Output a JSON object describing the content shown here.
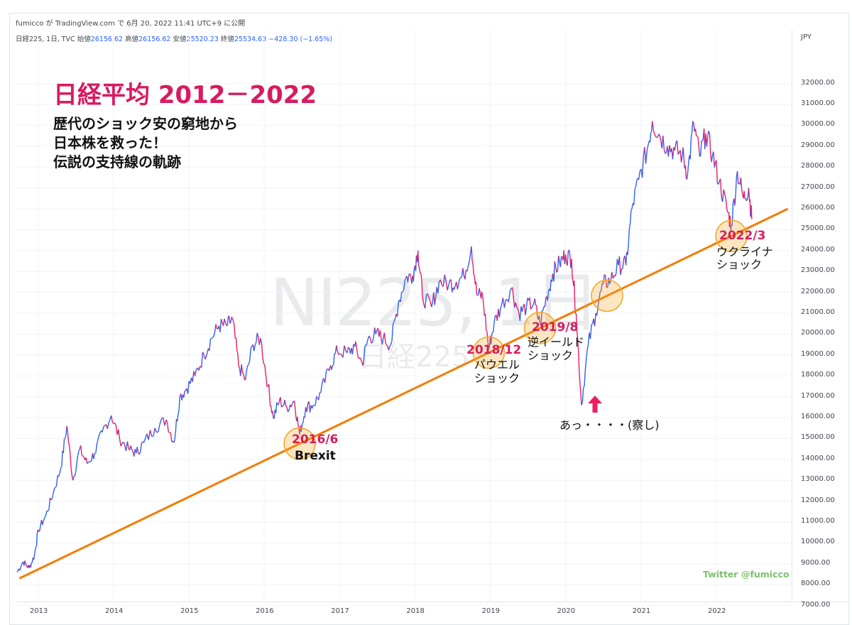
{
  "header": {
    "attribution": "fumicco が TradingView.com で 6月 20, 2022 11:41 UTC+9 に公開",
    "symbol": "日経225, 1日, TVC",
    "open_label": "始値",
    "open": "26156.62",
    "high_label": "高値",
    "high": "26156.62",
    "low_label": "安値",
    "low": "25520.23",
    "close_label": "終値",
    "close": "25534.63",
    "change": "−428.30 (−1.65%)",
    "currency": "JPY"
  },
  "watermark": {
    "main": "NI225, 1日",
    "sub": "日経225"
  },
  "title": "日経平均 2012－2022",
  "subtitle": [
    "歴代のショック安の窮地から",
    "日本株を救った！",
    "伝説の支持線の軌跡"
  ],
  "annotations": [
    {
      "date": "2016/6",
      "text": [
        "Brexit"
      ]
    },
    {
      "date": "2018/12",
      "text": [
        "パウエル",
        "ショック"
      ]
    },
    {
      "date": "2019/8",
      "text": [
        "逆イールド",
        "ショック"
      ]
    },
    {
      "date": "2022/3",
      "text": [
        "ウクライナ",
        "ショック"
      ]
    },
    {
      "date": "",
      "text": [
        "あっ・・・・(察し)"
      ]
    }
  ],
  "twitter": "Twitter @fumicco",
  "colors": {
    "up": "#2962ff",
    "down": "#e91e63",
    "support": "#f57c00",
    "highlight": "#f5a623",
    "accent": "#d81b60"
  },
  "chart_data": {
    "type": "line",
    "title": "日経平均 2012－2022",
    "xlabel": "",
    "ylabel": "",
    "x_ticks": [
      "2013",
      "2014",
      "2015",
      "2016",
      "2017",
      "2018",
      "2019",
      "2020",
      "2021",
      "2022"
    ],
    "y_ticks": [
      "7000.00",
      "8000.00",
      "9000.00",
      "10000.00",
      "11000.00",
      "12000.00",
      "13000.00",
      "14000.00",
      "15000.00",
      "16000.00",
      "17000.00",
      "18000.00",
      "19000.00",
      "20000.00",
      "21000.00",
      "22000.00",
      "23000.00",
      "24000.00",
      "25000.00",
      "26000.00",
      "27000.00",
      "28000.00",
      "29000.00",
      "30000.00",
      "31000.00",
      "32000.00"
    ],
    "ylim": [
      6300,
      33000
    ],
    "xlim": [
      2012.7,
      2023.0
    ],
    "series": [
      {
        "values": [
          [
            2012.72,
            8600
          ],
          [
            2012.8,
            9100
          ],
          [
            2012.88,
            8800
          ],
          [
            2012.95,
            9400
          ],
          [
            2013.0,
            10600
          ],
          [
            2013.1,
            11300
          ],
          [
            2013.2,
            12400
          ],
          [
            2013.3,
            13600
          ],
          [
            2013.38,
            15600
          ],
          [
            2013.46,
            13000
          ],
          [
            2013.55,
            14500
          ],
          [
            2013.65,
            13800
          ],
          [
            2013.75,
            14300
          ],
          [
            2013.85,
            15300
          ],
          [
            2013.97,
            16100
          ],
          [
            2014.08,
            15000
          ],
          [
            2014.2,
            14500
          ],
          [
            2014.3,
            14300
          ],
          [
            2014.4,
            14800
          ],
          [
            2014.55,
            15500
          ],
          [
            2014.7,
            15900
          ],
          [
            2014.8,
            14800
          ],
          [
            2014.88,
            17000
          ],
          [
            2014.97,
            17400
          ],
          [
            2015.08,
            18000
          ],
          [
            2015.2,
            19000
          ],
          [
            2015.3,
            19800
          ],
          [
            2015.4,
            20400
          ],
          [
            2015.5,
            20400
          ],
          [
            2015.58,
            20700
          ],
          [
            2015.66,
            18500
          ],
          [
            2015.75,
            17800
          ],
          [
            2015.85,
            19500
          ],
          [
            2015.95,
            19800
          ],
          [
            2016.05,
            17500
          ],
          [
            2016.12,
            16000
          ],
          [
            2016.2,
            16800
          ],
          [
            2016.3,
            16500
          ],
          [
            2016.4,
            16800
          ],
          [
            2016.47,
            15200
          ],
          [
            2016.55,
            16500
          ],
          [
            2016.65,
            16600
          ],
          [
            2016.75,
            17200
          ],
          [
            2016.88,
            18500
          ],
          [
            2016.97,
            19200
          ],
          [
            2017.1,
            19100
          ],
          [
            2017.2,
            19400
          ],
          [
            2017.3,
            18600
          ],
          [
            2017.38,
            19800
          ],
          [
            2017.48,
            20000
          ],
          [
            2017.58,
            19800
          ],
          [
            2017.68,
            19500
          ],
          [
            2017.78,
            21500
          ],
          [
            2017.88,
            22700
          ],
          [
            2017.97,
            22800
          ],
          [
            2018.04,
            24000
          ],
          [
            2018.1,
            21800
          ],
          [
            2018.22,
            21300
          ],
          [
            2018.32,
            22500
          ],
          [
            2018.45,
            22400
          ],
          [
            2018.55,
            22500
          ],
          [
            2018.65,
            22800
          ],
          [
            2018.75,
            24200
          ],
          [
            2018.82,
            21900
          ],
          [
            2018.9,
            21800
          ],
          [
            2018.98,
            19300
          ],
          [
            2019.05,
            20500
          ],
          [
            2019.15,
            21400
          ],
          [
            2019.28,
            22200
          ],
          [
            2019.38,
            21000
          ],
          [
            2019.48,
            21300
          ],
          [
            2019.58,
            21500
          ],
          [
            2019.66,
            20500
          ],
          [
            2019.75,
            21800
          ],
          [
            2019.83,
            22900
          ],
          [
            2019.92,
            23400
          ],
          [
            2020.0,
            23800
          ],
          [
            2020.08,
            23600
          ],
          [
            2020.14,
            21000
          ],
          [
            2020.21,
            16600
          ],
          [
            2020.3,
            19500
          ],
          [
            2020.4,
            21000
          ],
          [
            2020.5,
            22400
          ],
          [
            2020.6,
            22600
          ],
          [
            2020.7,
            23300
          ],
          [
            2020.8,
            23300
          ],
          [
            2020.88,
            26000
          ],
          [
            2020.97,
            27400
          ],
          [
            2021.08,
            28800
          ],
          [
            2021.15,
            30200
          ],
          [
            2021.25,
            29500
          ],
          [
            2021.35,
            29000
          ],
          [
            2021.45,
            28800
          ],
          [
            2021.55,
            28600
          ],
          [
            2021.62,
            27700
          ],
          [
            2021.7,
            30100
          ],
          [
            2021.78,
            28500
          ],
          [
            2021.86,
            29600
          ],
          [
            2021.95,
            28600
          ],
          [
            2022.04,
            27300
          ],
          [
            2022.14,
            26000
          ],
          [
            2022.2,
            25200
          ],
          [
            2022.28,
            27800
          ],
          [
            2022.36,
            26500
          ],
          [
            2022.43,
            27000
          ],
          [
            2022.47,
            25500
          ]
        ]
      },
      {
        "values": [
          [
            2012.75,
            8300
          ],
          [
            2022.95,
            26000
          ]
        ]
      }
    ]
  }
}
